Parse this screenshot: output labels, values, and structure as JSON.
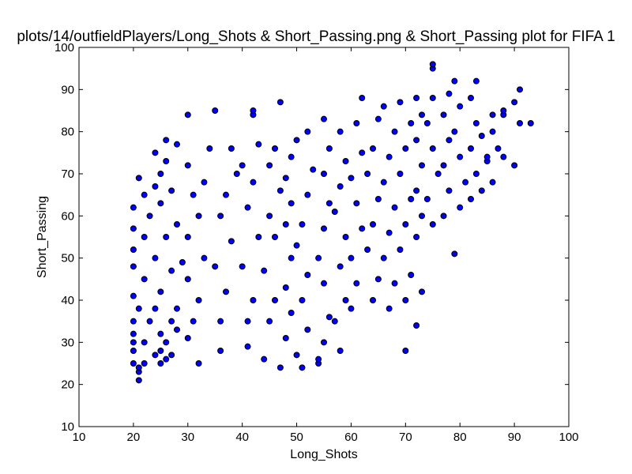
{
  "chart_data": {
    "type": "scatter",
    "title": "plots/14/outfieldPlayers/Long_Shots & Short_Passing.png & Short_Passing plot for FIFA 1",
    "xlabel": "Long_Shots",
    "ylabel": "Short_Passing",
    "xlim": [
      10,
      100
    ],
    "ylim": [
      10,
      100
    ],
    "xticks": [
      "10",
      "20",
      "30",
      "40",
      "50",
      "60",
      "70",
      "80",
      "90",
      "100"
    ],
    "yticks": [
      "10",
      "20",
      "30",
      "40",
      "50",
      "60",
      "70",
      "80",
      "90",
      "100"
    ],
    "grid": false,
    "marker_color": "#0000ff",
    "marker_edge_color": "#000000",
    "points": [
      [
        21,
        21
      ],
      [
        21,
        23
      ],
      [
        21,
        24
      ],
      [
        20,
        25
      ],
      [
        22,
        25
      ],
      [
        25,
        25
      ],
      [
        26,
        26
      ],
      [
        24,
        27
      ],
      [
        20,
        28
      ],
      [
        25,
        28
      ],
      [
        27,
        27
      ],
      [
        20,
        30
      ],
      [
        22,
        30
      ],
      [
        26,
        30
      ],
      [
        20,
        32
      ],
      [
        25,
        32
      ],
      [
        28,
        33
      ],
      [
        20,
        35
      ],
      [
        23,
        35
      ],
      [
        27,
        35
      ],
      [
        21,
        38
      ],
      [
        24,
        38
      ],
      [
        28,
        38
      ],
      [
        20,
        41
      ],
      [
        25,
        42
      ],
      [
        22,
        45
      ],
      [
        27,
        47
      ],
      [
        20,
        48
      ],
      [
        24,
        50
      ],
      [
        29,
        49
      ],
      [
        20,
        52
      ],
      [
        22,
        55
      ],
      [
        26,
        55
      ],
      [
        20,
        57
      ],
      [
        23,
        60
      ],
      [
        28,
        58
      ],
      [
        20,
        62
      ],
      [
        22,
        65
      ],
      [
        25,
        63
      ],
      [
        24,
        67
      ],
      [
        27,
        66
      ],
      [
        21,
        69
      ],
      [
        25,
        70
      ],
      [
        26,
        73
      ],
      [
        24,
        75
      ],
      [
        26,
        78
      ],
      [
        28,
        77
      ],
      [
        30,
        84
      ],
      [
        32,
        25
      ],
      [
        30,
        31
      ],
      [
        31,
        35
      ],
      [
        32,
        40
      ],
      [
        30,
        45
      ],
      [
        33,
        50
      ],
      [
        30,
        55
      ],
      [
        32,
        60
      ],
      [
        31,
        65
      ],
      [
        33,
        68
      ],
      [
        30,
        72
      ],
      [
        34,
        76
      ],
      [
        35,
        85
      ],
      [
        36,
        28
      ],
      [
        36,
        35
      ],
      [
        37,
        42
      ],
      [
        35,
        48
      ],
      [
        38,
        54
      ],
      [
        36,
        60
      ],
      [
        37,
        65
      ],
      [
        39,
        70
      ],
      [
        38,
        76
      ],
      [
        41,
        29
      ],
      [
        41,
        35
      ],
      [
        42,
        40
      ],
      [
        40,
        48
      ],
      [
        43,
        55
      ],
      [
        41,
        62
      ],
      [
        42,
        68
      ],
      [
        40,
        72
      ],
      [
        43,
        77
      ],
      [
        42,
        84
      ],
      [
        42,
        85
      ],
      [
        44,
        26
      ],
      [
        45,
        35
      ],
      [
        46,
        40
      ],
      [
        44,
        47
      ],
      [
        46,
        55
      ],
      [
        45,
        60
      ],
      [
        47,
        66
      ],
      [
        45,
        72
      ],
      [
        46,
        76
      ],
      [
        47,
        87
      ],
      [
        47,
        24
      ],
      [
        48,
        31
      ],
      [
        49,
        37
      ],
      [
        48,
        43
      ],
      [
        49,
        50
      ],
      [
        48,
        58
      ],
      [
        49,
        63
      ],
      [
        48,
        69
      ],
      [
        49,
        74
      ],
      [
        50,
        78
      ],
      [
        51,
        24
      ],
      [
        50,
        27
      ],
      [
        52,
        33
      ],
      [
        51,
        40
      ],
      [
        52,
        46
      ],
      [
        50,
        53
      ],
      [
        51,
        58
      ],
      [
        52,
        65
      ],
      [
        53,
        71
      ],
      [
        52,
        80
      ],
      [
        54,
        25
      ],
      [
        54,
        26
      ],
      [
        55,
        30
      ],
      [
        56,
        36
      ],
      [
        55,
        44
      ],
      [
        54,
        50
      ],
      [
        55,
        57
      ],
      [
        56,
        63
      ],
      [
        55,
        70
      ],
      [
        56,
        76
      ],
      [
        55,
        83
      ],
      [
        58,
        28
      ],
      [
        57,
        35
      ],
      [
        59,
        40
      ],
      [
        58,
        48
      ],
      [
        59,
        55
      ],
      [
        57,
        61
      ],
      [
        58,
        67
      ],
      [
        59,
        73
      ],
      [
        58,
        80
      ],
      [
        60,
        38
      ],
      [
        61,
        44
      ],
      [
        60,
        50
      ],
      [
        62,
        57
      ],
      [
        61,
        63
      ],
      [
        60,
        69
      ],
      [
        62,
        75
      ],
      [
        61,
        82
      ],
      [
        62,
        88
      ],
      [
        64,
        40
      ],
      [
        65,
        45
      ],
      [
        63,
        52
      ],
      [
        64,
        58
      ],
      [
        65,
        64
      ],
      [
        63,
        70
      ],
      [
        64,
        76
      ],
      [
        65,
        83
      ],
      [
        67,
        38
      ],
      [
        68,
        44
      ],
      [
        66,
        50
      ],
      [
        67,
        56
      ],
      [
        68,
        62
      ],
      [
        66,
        68
      ],
      [
        67,
        74
      ],
      [
        68,
        80
      ],
      [
        66,
        86
      ],
      [
        70,
        28
      ],
      [
        70,
        40
      ],
      [
        71,
        46
      ],
      [
        69,
        52
      ],
      [
        70,
        58
      ],
      [
        71,
        64
      ],
      [
        69,
        70
      ],
      [
        70,
        76
      ],
      [
        71,
        82
      ],
      [
        69,
        87
      ],
      [
        72,
        34
      ],
      [
        73,
        42
      ],
      [
        72,
        55
      ],
      [
        73,
        60
      ],
      [
        72,
        66
      ],
      [
        73,
        72
      ],
      [
        72,
        78
      ],
      [
        73,
        84
      ],
      [
        72,
        88
      ],
      [
        75,
        58
      ],
      [
        74,
        64
      ],
      [
        76,
        70
      ],
      [
        75,
        76
      ],
      [
        74,
        82
      ],
      [
        75,
        88
      ],
      [
        75,
        95
      ],
      [
        75,
        96
      ],
      [
        77,
        60
      ],
      [
        78,
        66
      ],
      [
        77,
        72
      ],
      [
        78,
        78
      ],
      [
        77,
        84
      ],
      [
        78,
        89
      ],
      [
        79,
        51
      ],
      [
        80,
        62
      ],
      [
        81,
        68
      ],
      [
        80,
        74
      ],
      [
        79,
        80
      ],
      [
        80,
        86
      ],
      [
        79,
        92
      ],
      [
        82,
        64
      ],
      [
        83,
        70
      ],
      [
        82,
        76
      ],
      [
        83,
        82
      ],
      [
        82,
        88
      ],
      [
        84,
        66
      ],
      [
        85,
        73
      ],
      [
        84,
        79
      ],
      [
        83,
        92
      ],
      [
        86,
        68
      ],
      [
        85,
        74
      ],
      [
        86,
        80
      ],
      [
        87,
        76
      ],
      [
        86,
        84
      ],
      [
        88,
        74
      ],
      [
        88,
        84
      ],
      [
        88,
        85
      ],
      [
        90,
        72
      ],
      [
        90,
        87
      ],
      [
        91,
        82
      ],
      [
        91,
        90
      ],
      [
        93,
        82
      ]
    ]
  }
}
